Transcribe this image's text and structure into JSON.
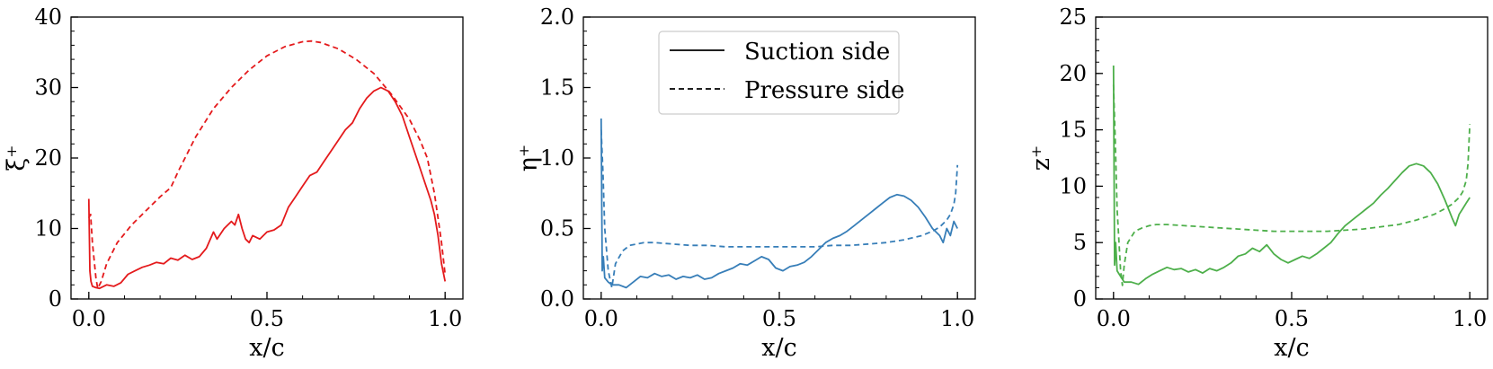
{
  "chart_data": [
    {
      "type": "line",
      "title": "",
      "xlabel": "x/c",
      "ylabel": "ξ⁺",
      "xlim": [
        -0.05,
        1.05
      ],
      "ylim": [
        0,
        40
      ],
      "xticks": [
        "0.0",
        "0.5",
        "1.0"
      ],
      "yticks": [
        "0",
        "10",
        "20",
        "30",
        "40"
      ],
      "color": "#e41a1c",
      "series": [
        {
          "name": "Suction side",
          "style": "solid",
          "x": [
            0.0,
            0.003,
            0.006,
            0.01,
            0.02,
            0.03,
            0.05,
            0.07,
            0.09,
            0.11,
            0.13,
            0.15,
            0.17,
            0.19,
            0.21,
            0.23,
            0.25,
            0.27,
            0.29,
            0.31,
            0.33,
            0.35,
            0.36,
            0.38,
            0.4,
            0.41,
            0.42,
            0.43,
            0.44,
            0.45,
            0.46,
            0.48,
            0.5,
            0.52,
            0.54,
            0.56,
            0.58,
            0.6,
            0.62,
            0.64,
            0.66,
            0.68,
            0.7,
            0.72,
            0.74,
            0.76,
            0.78,
            0.8,
            0.82,
            0.84,
            0.86,
            0.88,
            0.9,
            0.92,
            0.94,
            0.96,
            0.97,
            0.98,
            0.99,
            1.0
          ],
          "y": [
            14.2,
            4.0,
            2.5,
            1.8,
            1.6,
            1.5,
            2.0,
            1.8,
            2.3,
            3.5,
            4.0,
            4.5,
            4.8,
            5.2,
            5.0,
            5.8,
            5.5,
            6.2,
            5.6,
            6.0,
            7.2,
            9.5,
            8.5,
            10.0,
            11.0,
            10.5,
            12.0,
            10.0,
            8.5,
            8.0,
            9.0,
            8.5,
            9.5,
            9.8,
            10.5,
            13.0,
            14.5,
            16.0,
            17.5,
            18.0,
            19.5,
            21.0,
            22.5,
            24.0,
            25.0,
            27.0,
            28.5,
            29.5,
            30.0,
            29.5,
            28.0,
            26.0,
            23.0,
            20.0,
            17.0,
            14.0,
            12.0,
            9.0,
            5.0,
            2.5
          ]
        },
        {
          "name": "Pressure side",
          "style": "dashed",
          "x": [
            0.0,
            0.005,
            0.01,
            0.02,
            0.025,
            0.035,
            0.05,
            0.08,
            0.12,
            0.16,
            0.2,
            0.23,
            0.25,
            0.3,
            0.35,
            0.4,
            0.45,
            0.5,
            0.55,
            0.6,
            0.625,
            0.65,
            0.7,
            0.75,
            0.8,
            0.85,
            0.9,
            0.93,
            0.95,
            0.97,
            0.98,
            0.99,
            1.0
          ],
          "y": [
            11.5,
            12.0,
            8.0,
            3.0,
            1.5,
            2.5,
            5.0,
            8.0,
            10.5,
            12.5,
            14.5,
            15.8,
            18.0,
            23.0,
            27.0,
            30.0,
            32.5,
            34.5,
            35.8,
            36.5,
            36.6,
            36.4,
            35.5,
            34.0,
            32.0,
            29.0,
            25.5,
            22.5,
            20.0,
            15.0,
            11.5,
            8.0,
            3.5
          ]
        }
      ]
    },
    {
      "type": "line",
      "title": "",
      "xlabel": "x/c",
      "ylabel": "η⁺",
      "xlim": [
        -0.05,
        1.05
      ],
      "ylim": [
        0,
        2.0
      ],
      "xticks": [
        "0.0",
        "0.5",
        "1.0"
      ],
      "yticks": [
        "0.0",
        "0.5",
        "1.0",
        "1.5",
        "2.0"
      ],
      "color": "#377eb8",
      "series": [
        {
          "name": "Suction side",
          "style": "solid",
          "x": [
            0.0,
            0.003,
            0.006,
            0.01,
            0.02,
            0.03,
            0.05,
            0.07,
            0.09,
            0.11,
            0.13,
            0.15,
            0.17,
            0.19,
            0.21,
            0.23,
            0.25,
            0.27,
            0.29,
            0.31,
            0.33,
            0.35,
            0.37,
            0.39,
            0.41,
            0.43,
            0.45,
            0.47,
            0.49,
            0.51,
            0.53,
            0.55,
            0.57,
            0.59,
            0.61,
            0.63,
            0.65,
            0.67,
            0.69,
            0.71,
            0.73,
            0.75,
            0.77,
            0.79,
            0.81,
            0.83,
            0.85,
            0.87,
            0.89,
            0.91,
            0.93,
            0.95,
            0.96,
            0.97,
            0.98,
            0.99,
            1.0
          ],
          "y": [
            1.28,
            0.2,
            0.3,
            0.15,
            0.12,
            0.1,
            0.1,
            0.08,
            0.12,
            0.16,
            0.15,
            0.18,
            0.16,
            0.17,
            0.14,
            0.16,
            0.15,
            0.17,
            0.14,
            0.15,
            0.18,
            0.2,
            0.22,
            0.25,
            0.24,
            0.27,
            0.3,
            0.28,
            0.22,
            0.2,
            0.23,
            0.24,
            0.26,
            0.3,
            0.35,
            0.4,
            0.43,
            0.45,
            0.48,
            0.52,
            0.56,
            0.6,
            0.64,
            0.68,
            0.72,
            0.74,
            0.73,
            0.7,
            0.65,
            0.58,
            0.5,
            0.45,
            0.4,
            0.5,
            0.45,
            0.55,
            0.5
          ]
        },
        {
          "name": "Pressure side",
          "style": "dashed",
          "x": [
            0.0,
            0.005,
            0.01,
            0.02,
            0.03,
            0.04,
            0.06,
            0.08,
            0.1,
            0.12,
            0.15,
            0.2,
            0.25,
            0.3,
            0.35,
            0.4,
            0.45,
            0.5,
            0.55,
            0.6,
            0.65,
            0.7,
            0.75,
            0.8,
            0.85,
            0.9,
            0.93,
            0.95,
            0.97,
            0.98,
            0.99,
            0.995,
            1.0
          ],
          "y": [
            1.2,
            0.9,
            0.5,
            0.2,
            0.08,
            0.25,
            0.34,
            0.38,
            0.39,
            0.4,
            0.4,
            0.39,
            0.38,
            0.38,
            0.37,
            0.37,
            0.37,
            0.37,
            0.37,
            0.37,
            0.38,
            0.38,
            0.39,
            0.4,
            0.42,
            0.45,
            0.48,
            0.51,
            0.56,
            0.6,
            0.67,
            0.75,
            0.95
          ]
        }
      ]
    },
    {
      "type": "line",
      "title": "",
      "xlabel": "x/c",
      "ylabel": "z⁺",
      "xlim": [
        -0.05,
        1.05
      ],
      "ylim": [
        0,
        25
      ],
      "xticks": [
        "0.0",
        "0.5",
        "1.0"
      ],
      "yticks": [
        "0",
        "5",
        "10",
        "15",
        "20",
        "25"
      ],
      "color": "#4daf4a",
      "series": [
        {
          "name": "Suction side",
          "style": "solid",
          "x": [
            0.0,
            0.003,
            0.006,
            0.01,
            0.02,
            0.03,
            0.05,
            0.07,
            0.09,
            0.11,
            0.13,
            0.15,
            0.17,
            0.19,
            0.21,
            0.23,
            0.25,
            0.27,
            0.29,
            0.31,
            0.33,
            0.35,
            0.37,
            0.39,
            0.41,
            0.43,
            0.45,
            0.47,
            0.49,
            0.51,
            0.53,
            0.55,
            0.57,
            0.59,
            0.61,
            0.63,
            0.65,
            0.67,
            0.69,
            0.71,
            0.73,
            0.75,
            0.77,
            0.79,
            0.81,
            0.83,
            0.85,
            0.87,
            0.89,
            0.91,
            0.93,
            0.95,
            0.96,
            0.97,
            0.98,
            0.99,
            1.0
          ],
          "y": [
            20.7,
            3.0,
            5.0,
            2.5,
            2.0,
            1.5,
            1.5,
            1.3,
            1.8,
            2.2,
            2.5,
            2.8,
            2.6,
            2.7,
            2.4,
            2.6,
            2.3,
            2.7,
            2.5,
            2.8,
            3.2,
            3.8,
            4.0,
            4.5,
            4.2,
            4.8,
            4.0,
            3.5,
            3.2,
            3.5,
            3.8,
            3.6,
            4.0,
            4.5,
            5.0,
            5.8,
            6.5,
            7.0,
            7.5,
            8.0,
            8.5,
            9.2,
            9.8,
            10.5,
            11.2,
            11.8,
            12.0,
            11.8,
            11.2,
            10.2,
            8.8,
            7.2,
            6.5,
            7.5,
            8.0,
            8.5,
            9.0
          ]
        },
        {
          "name": "Pressure side",
          "style": "dashed",
          "x": [
            0.0,
            0.005,
            0.01,
            0.02,
            0.025,
            0.03,
            0.04,
            0.06,
            0.08,
            0.1,
            0.12,
            0.15,
            0.2,
            0.25,
            0.3,
            0.35,
            0.4,
            0.45,
            0.5,
            0.55,
            0.6,
            0.65,
            0.7,
            0.75,
            0.8,
            0.85,
            0.9,
            0.93,
            0.95,
            0.97,
            0.98,
            0.99,
            0.995,
            1.0
          ],
          "y": [
            19.0,
            14.0,
            8.0,
            2.5,
            1.2,
            3.0,
            5.0,
            6.0,
            6.3,
            6.5,
            6.6,
            6.6,
            6.5,
            6.4,
            6.3,
            6.2,
            6.1,
            6.0,
            6.0,
            6.0,
            6.0,
            6.1,
            6.2,
            6.4,
            6.6,
            7.0,
            7.5,
            8.0,
            8.4,
            9.0,
            9.5,
            10.5,
            12.0,
            15.5
          ]
        }
      ]
    }
  ],
  "legend": {
    "entries": [
      "Suction side",
      "Pressure side"
    ],
    "placement": "top-center of middle panel"
  }
}
